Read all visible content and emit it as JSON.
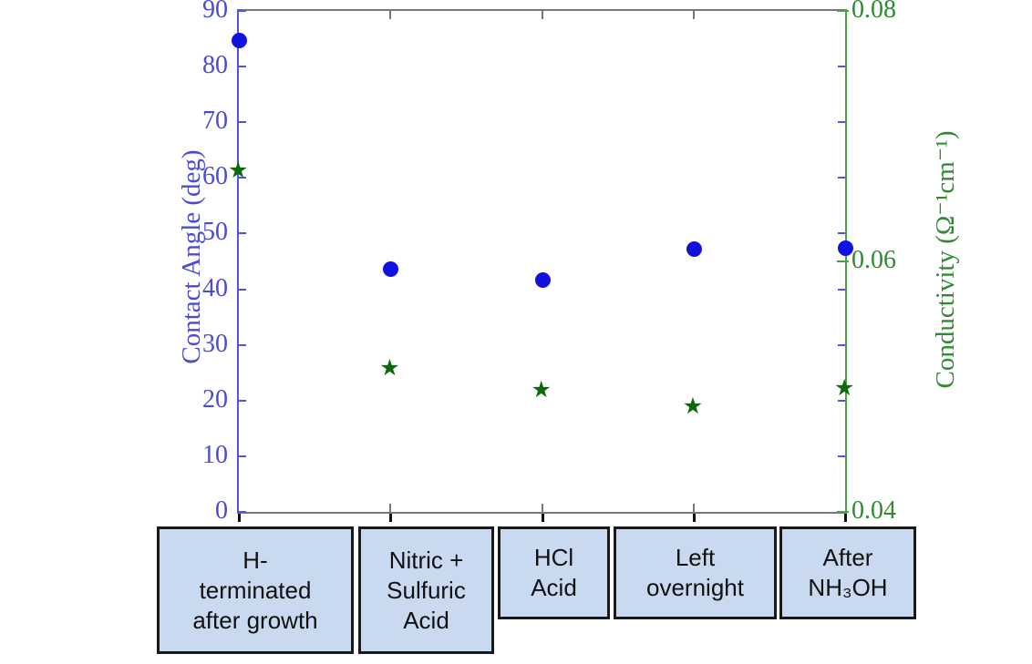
{
  "chart_data": {
    "type": "scatter",
    "dual_axis": true,
    "categories": [
      {
        "lines": [
          "H-",
          "terminated",
          "after growth"
        ]
      },
      {
        "lines": [
          "Nitric +",
          "Sulfuric",
          "Acid"
        ]
      },
      {
        "lines": [
          "HCl",
          "Acid"
        ]
      },
      {
        "lines": [
          "Left",
          "overnight"
        ]
      },
      {
        "lines": [
          "After",
          "NH₃OH"
        ]
      }
    ],
    "series": [
      {
        "name": "Contact Angle",
        "marker": "circle",
        "color": "#1111e2",
        "axis": "left",
        "values": [
          84.8,
          43.7,
          41.7,
          47.3,
          47.4
        ]
      },
      {
        "name": "Conductivity",
        "marker": "star",
        "color": "#0b6b0b",
        "axis": "right",
        "values": [
          0.0672,
          0.0514,
          0.0497,
          0.0484,
          0.0498
        ]
      }
    ],
    "left_axis": {
      "label": "Contact Angle (deg)",
      "min": 0,
      "max": 90,
      "ticks": [
        0,
        10,
        20,
        30,
        40,
        50,
        60,
        70,
        80,
        90
      ],
      "color": "#4a4ad6",
      "line_color": "#5353dd"
    },
    "right_axis": {
      "label": "Conductivity (Ω⁻¹cm⁻¹)",
      "min": 0.04,
      "max": 0.08,
      "ticks": [
        0.04,
        0.06,
        0.08
      ],
      "tick_labels": [
        "0.04",
        "0.06",
        "0.08"
      ],
      "mirror_ticks": [
        10,
        20,
        30,
        40,
        50,
        60,
        70,
        80
      ],
      "color": "#2e8b2e",
      "line_color": "#45a245",
      "mirror_tick_color": "#5353dd"
    },
    "frame_color": "#777777",
    "outer_tick_color": "#111111",
    "grid": false,
    "legend": false,
    "title": ""
  }
}
